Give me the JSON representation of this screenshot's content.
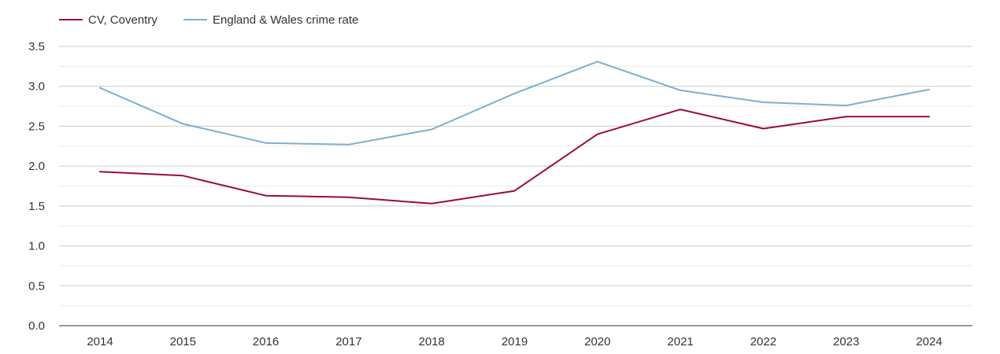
{
  "chart_data": {
    "type": "line",
    "title": "",
    "xlabel": "",
    "ylabel": "",
    "categories": [
      "2014",
      "2015",
      "2016",
      "2017",
      "2018",
      "2019",
      "2020",
      "2021",
      "2022",
      "2023",
      "2024"
    ],
    "series": [
      {
        "name": "CV, Coventry",
        "color": "#9b0a3a",
        "values": [
          1.93,
          1.88,
          1.63,
          1.61,
          1.53,
          1.69,
          2.4,
          2.71,
          2.47,
          2.62,
          2.62
        ]
      },
      {
        "name": "England & Wales crime rate",
        "color": "#7bafd0",
        "values": [
          2.98,
          2.53,
          2.29,
          2.27,
          2.46,
          2.91,
          3.31,
          2.95,
          2.8,
          2.76,
          2.96
        ]
      }
    ],
    "y_ticks": [
      "0.0",
      "0.5",
      "1.0",
      "1.5",
      "2.0",
      "2.5",
      "3.0",
      "3.5"
    ],
    "ylim": [
      0,
      3.5
    ],
    "minor_grid_step": 0.25,
    "grid": true,
    "legend_position": "top-left"
  }
}
